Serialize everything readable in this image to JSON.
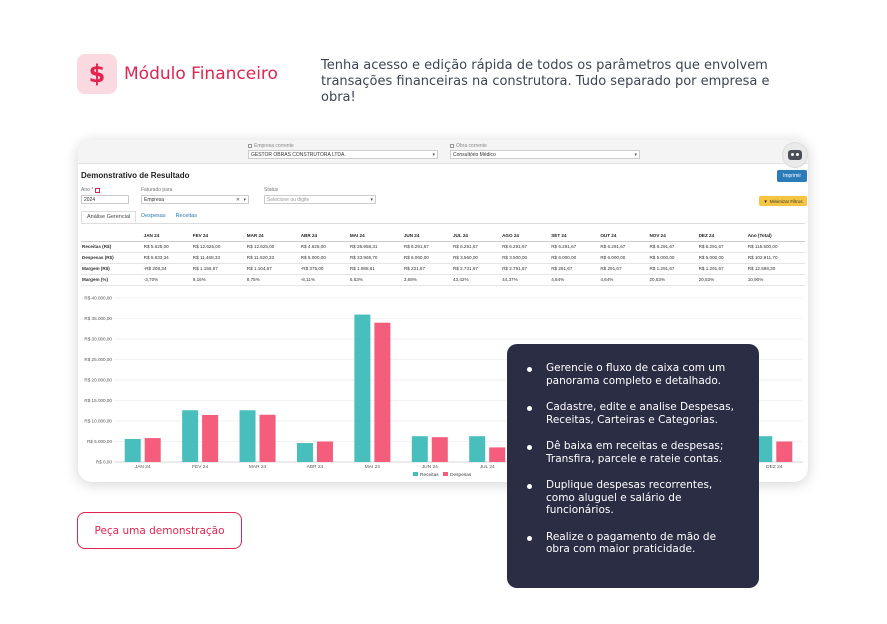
{
  "hero": {
    "icon": "dollar-icon",
    "title": "Módulo Financeiro",
    "description": "Tenha acesso e edição rápida de todos os parâmetros que envolvem transações financeiras na construtora. Tudo separado por empresa e obra!"
  },
  "app": {
    "company_label": "Empresa corrente",
    "company_value": "GESTOR OBRAS CONSTRUTORA LTDA.",
    "work_label": "Obra corrente",
    "work_value": "Consultório Médico",
    "page_title": "Demonstrativo de Resultado",
    "print_label": "Imprimir",
    "filters": {
      "year_label": "Ano *",
      "year_value": "2024",
      "billed_label": "Faturado para",
      "billed_value": "Empresa",
      "status_label": "Status",
      "status_placeholder": "Selecione ou digite"
    },
    "minimize_label": "Minimizar Filtros",
    "tabs": [
      "Análise Gerencial",
      "Despesas",
      "Receitas"
    ],
    "table": {
      "columns": [
        "",
        "JAN 24",
        "FEV 24",
        "MAR 24",
        "ABR 24",
        "MAI 24",
        "JUN 24",
        "JUL 24",
        "AGO 24",
        "SET 24",
        "OUT 24",
        "NOV 24",
        "DEZ 24",
        "Ano (Total)"
      ],
      "rows": [
        {
          "label": "Receitas (R$)",
          "cells": [
            "R$ 5.625,00",
            "R$ 12.625,00",
            "R$ 12.625,00",
            "R$ 4.625,00",
            "R$ 35.958,31",
            "R$ 6.291,67",
            "R$ 6.291,67",
            "R$ 6.291,67",
            "R$ 6.291,67",
            "R$ 6.291,67",
            "R$ 6.291,67",
            "R$ 6.291,67",
            "R$ 115.500,00"
          ]
        },
        {
          "label": "Despesas (R$)",
          "cells": [
            "R$ 5.833,34",
            "R$ 11.468,33",
            "R$ 11.520,33",
            "R$ 5.000,00",
            "R$ 33.969,70",
            "R$ 6.060,00",
            "R$ 3.560,00",
            "R$ 3.500,00",
            "R$ 6.000,00",
            "R$ 6.000,00",
            "R$ 5.000,00",
            "R$ 5.000,00",
            "R$ 102.911,70"
          ]
        },
        {
          "label": "Margem (R$)",
          "cells": [
            "-R$ 208,34",
            "R$ 1.156,67",
            "R$ 1.104,67",
            "-R$ 375,00",
            "R$ 1.988,61",
            "R$ 231,67",
            "R$ 2.731,67",
            "R$ 2.791,67",
            "R$ 291,67",
            "R$ 291,67",
            "R$ 1.291,67",
            "R$ 1.291,67",
            "R$ 12.588,30"
          ]
        },
        {
          "label": "Margem (%)",
          "cells": [
            "-3,70%",
            "9,16%",
            "8,75%",
            "-8,11%",
            "5,53%",
            "3,68%",
            "43,42%",
            "44,37%",
            "4,64%",
            "4,64%",
            "20,53%",
            "20,53%",
            "10,90%"
          ]
        }
      ]
    }
  },
  "chart_data": {
    "type": "bar",
    "categories": [
      "JAN 24",
      "FEV 24",
      "MAR 24",
      "ABR 24",
      "MAI 24",
      "JUN 24",
      "JUL 24",
      "AGO 24",
      "SET 24",
      "OUT 24",
      "NOV 24",
      "DEZ 24"
    ],
    "visible_categories": [
      "JAN 24",
      "FEV 24",
      "MAR 24",
      "ABR 24",
      "MAI 24",
      "JUN 24",
      "JUL 24",
      "DEZ 24"
    ],
    "series": [
      {
        "name": "Receitas",
        "color": "#48bfbd",
        "values": [
          5625,
          12625,
          12625,
          4625,
          35958.31,
          6291.67,
          6291.67,
          6291.67,
          6291.67,
          6291.67,
          6291.67,
          6291.67
        ]
      },
      {
        "name": "Despesas",
        "color": "#f45d7b",
        "values": [
          5833.34,
          11468.33,
          11520.33,
          5000,
          33969.7,
          6060,
          3560,
          3500,
          6000,
          6000,
          5000,
          5000
        ]
      }
    ],
    "yticks": [
      "R$ 0,00",
      "R$ 5.000,00",
      "R$ 10.000,00",
      "R$ 15.000,00",
      "R$ 20.000,00",
      "R$ 25.000,00",
      "R$ 30.000,00",
      "R$ 35.000,00",
      "R$ 40.000,00"
    ],
    "ylim": [
      0,
      40000
    ],
    "grid": true,
    "legend": "bottom"
  },
  "features": [
    "Gerencie o fluxo de caixa com um panorama completo e detalhado.",
    "Cadastre, edite e analise Despesas, Receitas, Carteiras e Categorias.",
    "Dê baixa em receitas e despesas; Transfira, parcele e rateie contas.",
    "Duplique despesas recorrentes, como aluguel e salário de funcionários.",
    "Realize o pagamento de mão de obra com maior praticidade."
  ],
  "cta_label": "Peça uma demonstração"
}
